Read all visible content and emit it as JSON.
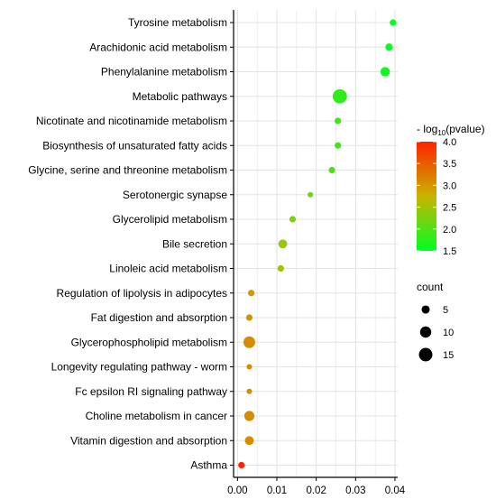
{
  "chart_data": {
    "type": "scatter",
    "categories": [
      "Tyrosine metabolism",
      "Arachidonic acid metabolism",
      "Phenylalanine metabolism",
      "Metabolic pathways",
      "Nicotinate and nicotinamide metabolism",
      "Biosynthesis of unsaturated fatty acids",
      "Glycine, serine and threonine metabolism",
      "Serotonergic synapse",
      "Glycerolipid metabolism",
      "Bile secretion",
      "Linoleic acid metabolism",
      "Regulation of lipolysis in adipocytes",
      "Fat digestion and absorption",
      "Glycerophospholipid metabolism",
      "Longevity regulating pathway -  worm",
      "Fc epsilon RI signaling pathway",
      "Choline metabolism in cancer",
      "Vitamin digestion and absorption",
      "Asthma"
    ],
    "points": [
      {
        "x": 0.0395,
        "neglog10p": 1.5,
        "count": 3
      },
      {
        "x": 0.0385,
        "neglog10p": 1.55,
        "count": 4
      },
      {
        "x": 0.0375,
        "neglog10p": 1.6,
        "count": 7
      },
      {
        "x": 0.026,
        "neglog10p": 1.8,
        "count": 17
      },
      {
        "x": 0.0255,
        "neglog10p": 1.9,
        "count": 3
      },
      {
        "x": 0.0255,
        "neglog10p": 1.9,
        "count": 3
      },
      {
        "x": 0.024,
        "neglog10p": 2.0,
        "count": 3
      },
      {
        "x": 0.0185,
        "neglog10p": 2.15,
        "count": 2
      },
      {
        "x": 0.014,
        "neglog10p": 2.3,
        "count": 3
      },
      {
        "x": 0.0115,
        "neglog10p": 2.45,
        "count": 6
      },
      {
        "x": 0.011,
        "neglog10p": 2.5,
        "count": 3
      },
      {
        "x": 0.0035,
        "neglog10p": 3.0,
        "count": 3
      },
      {
        "x": 0.003,
        "neglog10p": 3.05,
        "count": 3
      },
      {
        "x": 0.003,
        "neglog10p": 3.1,
        "count": 11
      },
      {
        "x": 0.003,
        "neglog10p": 3.1,
        "count": 2
      },
      {
        "x": 0.003,
        "neglog10p": 3.1,
        "count": 2
      },
      {
        "x": 0.003,
        "neglog10p": 3.1,
        "count": 8
      },
      {
        "x": 0.003,
        "neglog10p": 3.1,
        "count": 6
      },
      {
        "x": 0.001,
        "neglog10p": 4.0,
        "count": 3
      }
    ],
    "x_ticks": [
      "0.00",
      "0.01",
      "0.02",
      "0.03",
      "0.04"
    ],
    "x_tick_values": [
      0,
      0.01,
      0.02,
      0.03,
      0.04
    ],
    "xlim": [
      -0.001,
      0.0407
    ],
    "grid": true,
    "legend_placement": "right",
    "color_legend": {
      "title_prefix": "- log",
      "title_sub": "10",
      "title_suffix": "(pvalue)",
      "range": [
        1.5,
        4.0
      ],
      "ticks": [
        "4.0",
        "3.5",
        "3.0",
        "2.5",
        "2.0",
        "1.5"
      ],
      "tick_values": [
        4.0,
        3.5,
        3.0,
        2.5,
        2.0,
        1.5
      ],
      "colors": [
        "#00ff22",
        "#c8b400",
        "#ff2200"
      ]
    },
    "size_legend": {
      "title": "count",
      "entries": [
        "5",
        "10",
        "15"
      ],
      "values": [
        5,
        10,
        15
      ]
    },
    "panel_background": "#ffffff",
    "grid_color": "#e3e3e3",
    "axis_color": "#000000"
  }
}
